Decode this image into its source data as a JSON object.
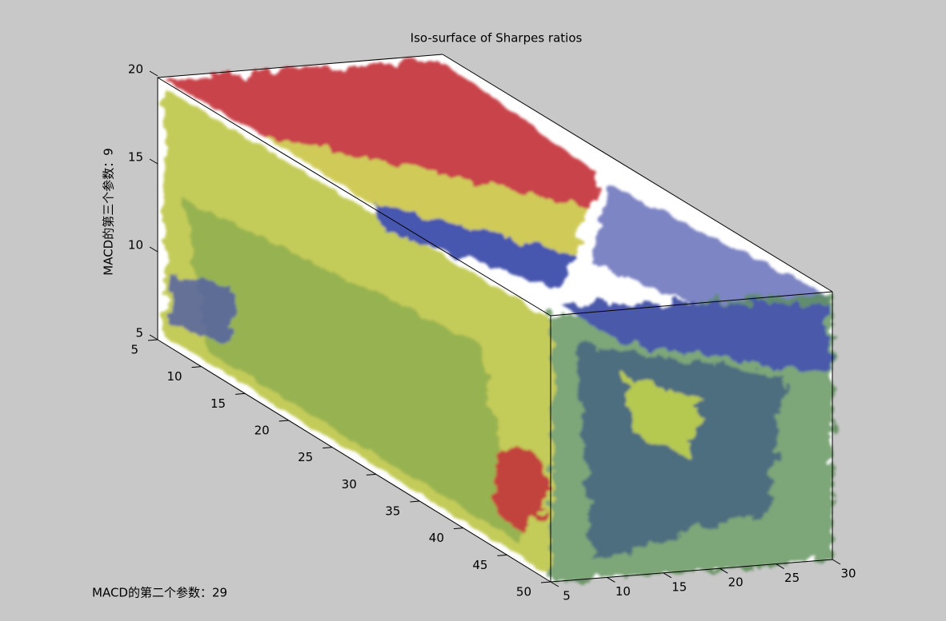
{
  "chart_data": {
    "type": "isosurface",
    "title": "Iso-surface of Sharpes ratios",
    "zlabel": "MACD的第三个参数：9",
    "ylabel": "MACD的第二个参数：29",
    "xlim": [
      5,
      30
    ],
    "xticks": [
      5,
      10,
      15,
      20,
      25,
      30
    ],
    "ylim": [
      5,
      50
    ],
    "yticks": [
      5,
      10,
      15,
      20,
      25,
      30,
      35,
      40,
      45,
      50
    ],
    "zlim": [
      5,
      20
    ],
    "zticks": [
      5,
      10,
      15,
      20
    ]
  }
}
